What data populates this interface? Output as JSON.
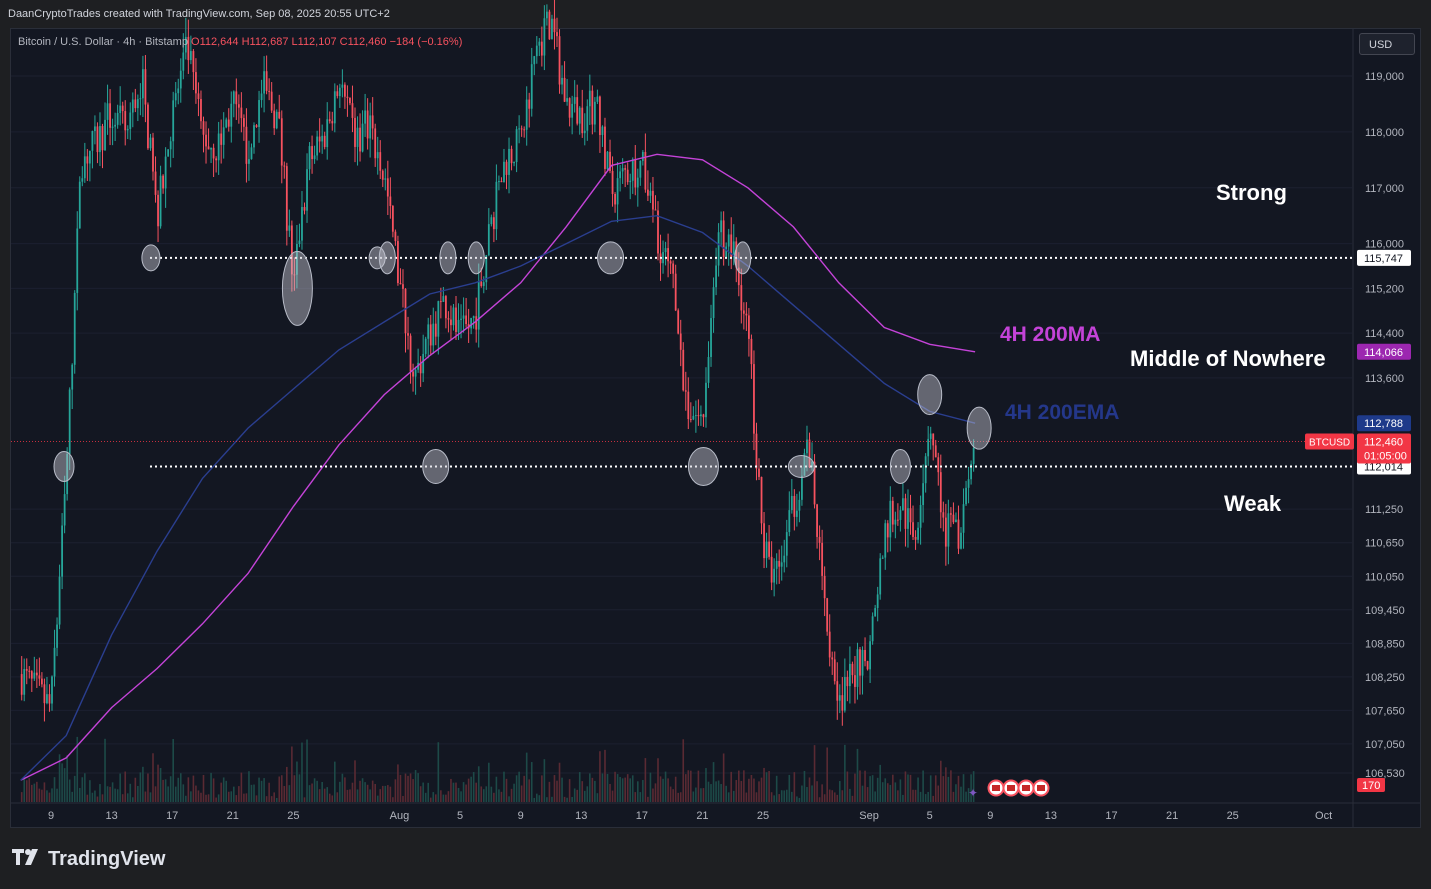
{
  "header": {
    "title": "DaanCryptoTrades created with TradingView.com, Sep 08, 2025 20:55 UTC+2"
  },
  "legend": {
    "symbol": "Bitcoin / U.S. Dollar · 4h · Bitstamp",
    "ohlc": "O112,644 H112,687 L112,107 C112,460 −184 (−0.16%)"
  },
  "currency_button": "USD",
  "brand": {
    "name": "TradingView"
  },
  "annotations": {
    "strong": "Strong",
    "middle": "Middle of Nowhere",
    "weak": "Weak",
    "ma_label": "4H 200MA",
    "ema_label": "4H 200EMA"
  },
  "colors": {
    "up": "#26a69a",
    "down": "#f7525f",
    "ma": "#c443d8",
    "ema": "#2a3e8f",
    "background": "#131722",
    "text": "#d1d4dc"
  },
  "chart_data": {
    "type": "candlestick",
    "symbol": "BTCUSD",
    "timeframe": "4h",
    "yaxis": {
      "ylim": [
        106300,
        119900
      ],
      "ticks": [
        119000,
        118000,
        117000,
        116000,
        115200,
        114400,
        113600,
        111250,
        110650,
        110050,
        109450,
        108850,
        108250,
        107650,
        107050,
        106530
      ],
      "tick_labels": [
        "119,000",
        "118,000",
        "117,000",
        "116,000",
        "115,200",
        "114,400",
        "113,600",
        "111,250",
        "110,650",
        "110,050",
        "109,450",
        "108,850",
        "108,250",
        "107,650",
        "107,050",
        "106,530"
      ]
    },
    "xaxis": {
      "tick_labels": [
        "9",
        "13",
        "17",
        "21",
        "25",
        "Aug",
        "5",
        "9",
        "13",
        "17",
        "21",
        "25",
        "Sep",
        "5",
        "9",
        "13",
        "17",
        "21",
        "25",
        "Oct"
      ],
      "tick_values": [
        "Jul 9",
        "Jul 13",
        "Jul 17",
        "Jul 21",
        "Jul 25",
        "Aug 1",
        "Aug 5",
        "Aug 9",
        "Aug 13",
        "Aug 17",
        "Aug 21",
        "Aug 25",
        "Sep 1",
        "Sep 5",
        "Sep 9",
        "Sep 13",
        "Sep 17",
        "Sep 21",
        "Sep 25",
        "Oct 1"
      ]
    },
    "levels": [
      {
        "value": 115747,
        "label": "115,747",
        "style": "dotted"
      },
      {
        "value": 112014,
        "label": "112,014",
        "style": "dotted"
      }
    ],
    "price_tags": [
      {
        "label": "114,066",
        "value": 114066,
        "color": "#9c27b0"
      },
      {
        "label": "112,788",
        "value": 112788,
        "color": "#1e3a8a"
      },
      {
        "label": "112,460",
        "sub": "01:05:00",
        "name": "BTCUSD",
        "value": 112460,
        "color": "#f23645"
      },
      {
        "label": "170",
        "color": "#f23645"
      }
    ],
    "close_line": 112460,
    "series": [
      {
        "name": "4H 200MA",
        "dates": [
          "Jul 7",
          "Jul 10",
          "Jul 13",
          "Jul 16",
          "Jul 19",
          "Jul 22",
          "Jul 25",
          "Jul 28",
          "Jul 31",
          "Aug 3",
          "Aug 6",
          "Aug 9",
          "Aug 12",
          "Aug 15",
          "Aug 18",
          "Aug 21",
          "Aug 24",
          "Aug 27",
          "Aug 30",
          "Sep 2",
          "Sep 5",
          "Sep 8"
        ],
        "values": [
          106400,
          106800,
          107700,
          108400,
          109200,
          110100,
          111300,
          112400,
          113300,
          114000,
          114600,
          115300,
          116300,
          117400,
          117600,
          117500,
          117000,
          116300,
          115300,
          114500,
          114200,
          114066
        ]
      },
      {
        "name": "4H 200EMA",
        "dates": [
          "Jul 7",
          "Jul 10",
          "Jul 13",
          "Jul 16",
          "Jul 19",
          "Jul 22",
          "Jul 25",
          "Jul 28",
          "Jul 31",
          "Aug 3",
          "Aug 6",
          "Aug 9",
          "Aug 12",
          "Aug 15",
          "Aug 18",
          "Aug 21",
          "Aug 24",
          "Aug 27",
          "Aug 30",
          "Sep 2",
          "Sep 5",
          "Sep 8"
        ],
        "values": [
          106400,
          107200,
          109000,
          110500,
          111800,
          112700,
          113400,
          114100,
          114600,
          115100,
          115300,
          115600,
          116000,
          116400,
          116500,
          116200,
          115600,
          114900,
          114200,
          113500,
          113000,
          112788
        ]
      },
      {
        "name": "price_path",
        "dates": [
          "Jul 7",
          "Jul 8",
          "Jul 9",
          "Jul 10",
          "Jul 11",
          "Jul 12",
          "Jul 13",
          "Jul 14",
          "Jul 15",
          "Jul 16",
          "Jul 17",
          "Jul 18",
          "Jul 19",
          "Jul 20",
          "Jul 21",
          "Jul 22",
          "Jul 23",
          "Jul 24",
          "Jul 25",
          "Jul 26",
          "Jul 27",
          "Jul 28",
          "Jul 29",
          "Jul 30",
          "Jul 31",
          "Aug 1",
          "Aug 2",
          "Aug 3",
          "Aug 4",
          "Aug 5",
          "Aug 6",
          "Aug 7",
          "Aug 8",
          "Aug 9",
          "Aug 10",
          "Aug 11",
          "Aug 12",
          "Aug 13",
          "Aug 14",
          "Aug 15",
          "Aug 16",
          "Aug 17",
          "Aug 18",
          "Aug 19",
          "Aug 20",
          "Aug 21",
          "Aug 22",
          "Aug 23",
          "Aug 24",
          "Aug 25",
          "Aug 26",
          "Aug 27",
          "Aug 28",
          "Aug 29",
          "Aug 30",
          "Aug 31",
          "Sep 1",
          "Sep 2",
          "Sep 3",
          "Sep 4",
          "Sep 5",
          "Sep 6",
          "Sep 7",
          "Sep 8"
        ],
        "values": [
          108300,
          108000,
          107700,
          111800,
          117500,
          117800,
          118300,
          118000,
          119000,
          116500,
          118300,
          119500,
          117900,
          117700,
          118500,
          117600,
          118800,
          118200,
          115300,
          117500,
          117900,
          118900,
          117900,
          118100,
          117200,
          115300,
          113600,
          114400,
          115000,
          114300,
          114700,
          116300,
          117500,
          117800,
          119500,
          120000,
          118500,
          118300,
          118500,
          116900,
          117300,
          117400,
          116200,
          115300,
          113100,
          112800,
          116200,
          115900,
          114500,
          110500,
          110000,
          111300,
          112400,
          109600,
          107800,
          108400,
          108600,
          110900,
          111400,
          110700,
          112900,
          110900,
          110700,
          112460
        ]
      }
    ],
    "volume": {
      "last_label": "170"
    }
  }
}
